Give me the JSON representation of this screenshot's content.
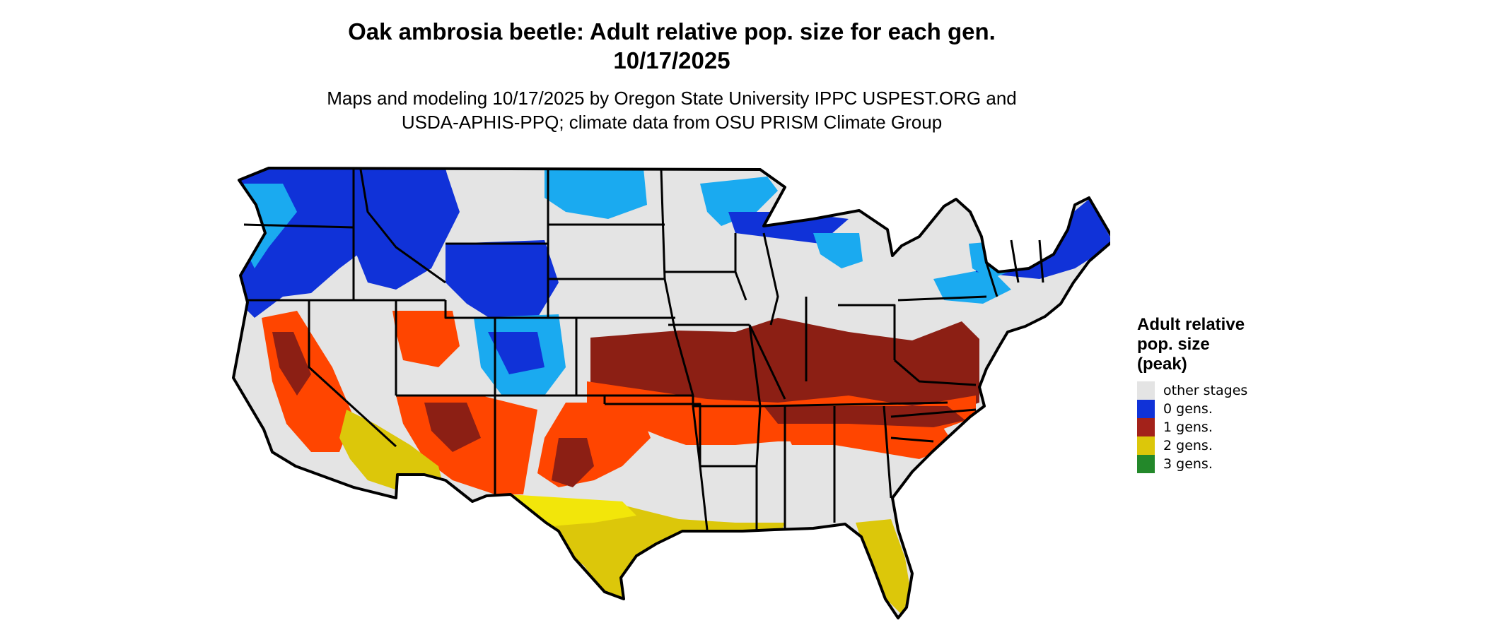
{
  "title_line1": "Oak ambrosia beetle: Adult relative pop. size for each gen.",
  "title_line2": "10/17/2025",
  "subtitle_line1": "Maps and modeling 10/17/2025 by Oregon State University IPPC USPEST.ORG and",
  "subtitle_line2": "USDA-APHIS-PPQ; climate data from OSU PRISM Climate Group",
  "legend": {
    "title_line1": "Adult relative",
    "title_line2": "pop. size",
    "title_line3": "(peak)",
    "items": [
      {
        "label": "other stages",
        "color": "#e4e4e4"
      },
      {
        "label": "0 gens.",
        "color": "#1032d8"
      },
      {
        "label": "1 gens.",
        "color": "#a3221a"
      },
      {
        "label": "2 gens.",
        "color": "#dcc70a"
      },
      {
        "label": "3 gens.",
        "color": "#23882a"
      }
    ]
  },
  "map_colors": {
    "background_land": "#e4e4e4",
    "zero_gens_dark": "#1032d8",
    "zero_gens_light": "#1aaaf0",
    "one_gen_dark": "#8c1f14",
    "one_gen_bright": "#ff4500",
    "two_gens": "#dcc70a",
    "two_gens_bright": "#f2e60a",
    "border": "#000000"
  }
}
